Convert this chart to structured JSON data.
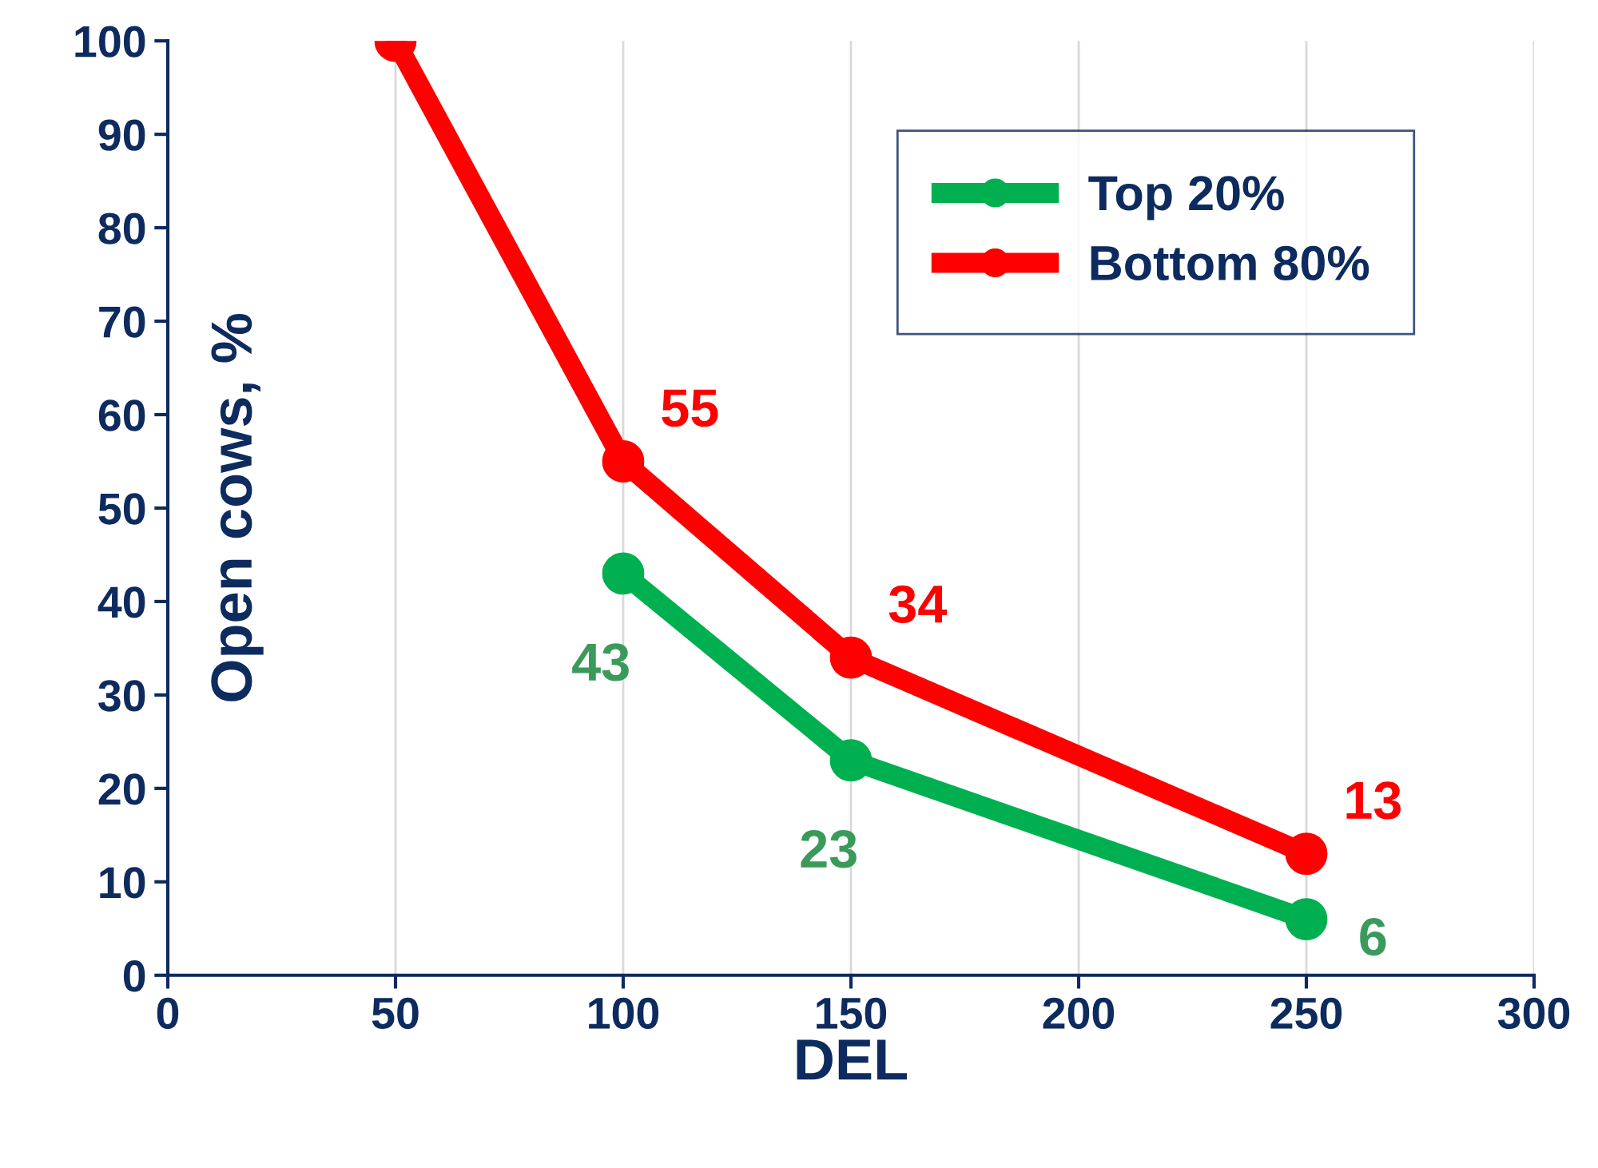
{
  "chart_data": {
    "type": "line",
    "xlabel": "DEL",
    "ylabel": "Open cows, %",
    "x": [
      50,
      100,
      150,
      250
    ],
    "series": [
      {
        "name": "Top 20%",
        "color": "#00b050",
        "values": [
          null,
          43,
          23,
          6
        ],
        "value_labels": [
          null,
          "43",
          "23",
          "6"
        ]
      },
      {
        "name": "Bottom 80%",
        "color": "#ff0000",
        "values": [
          100,
          55,
          34,
          13
        ],
        "value_labels": [
          null,
          "55",
          "34",
          "13"
        ]
      }
    ],
    "xlim": [
      0,
      300
    ],
    "xticks": [
      0,
      50,
      100,
      150,
      200,
      250,
      300
    ],
    "ylim": [
      0,
      100
    ],
    "yticks": [
      0,
      10,
      20,
      30,
      40,
      50,
      60,
      70,
      80,
      90,
      100
    ],
    "grid": "x",
    "legend": "top right",
    "marker": "circle",
    "line_style": "solid"
  }
}
